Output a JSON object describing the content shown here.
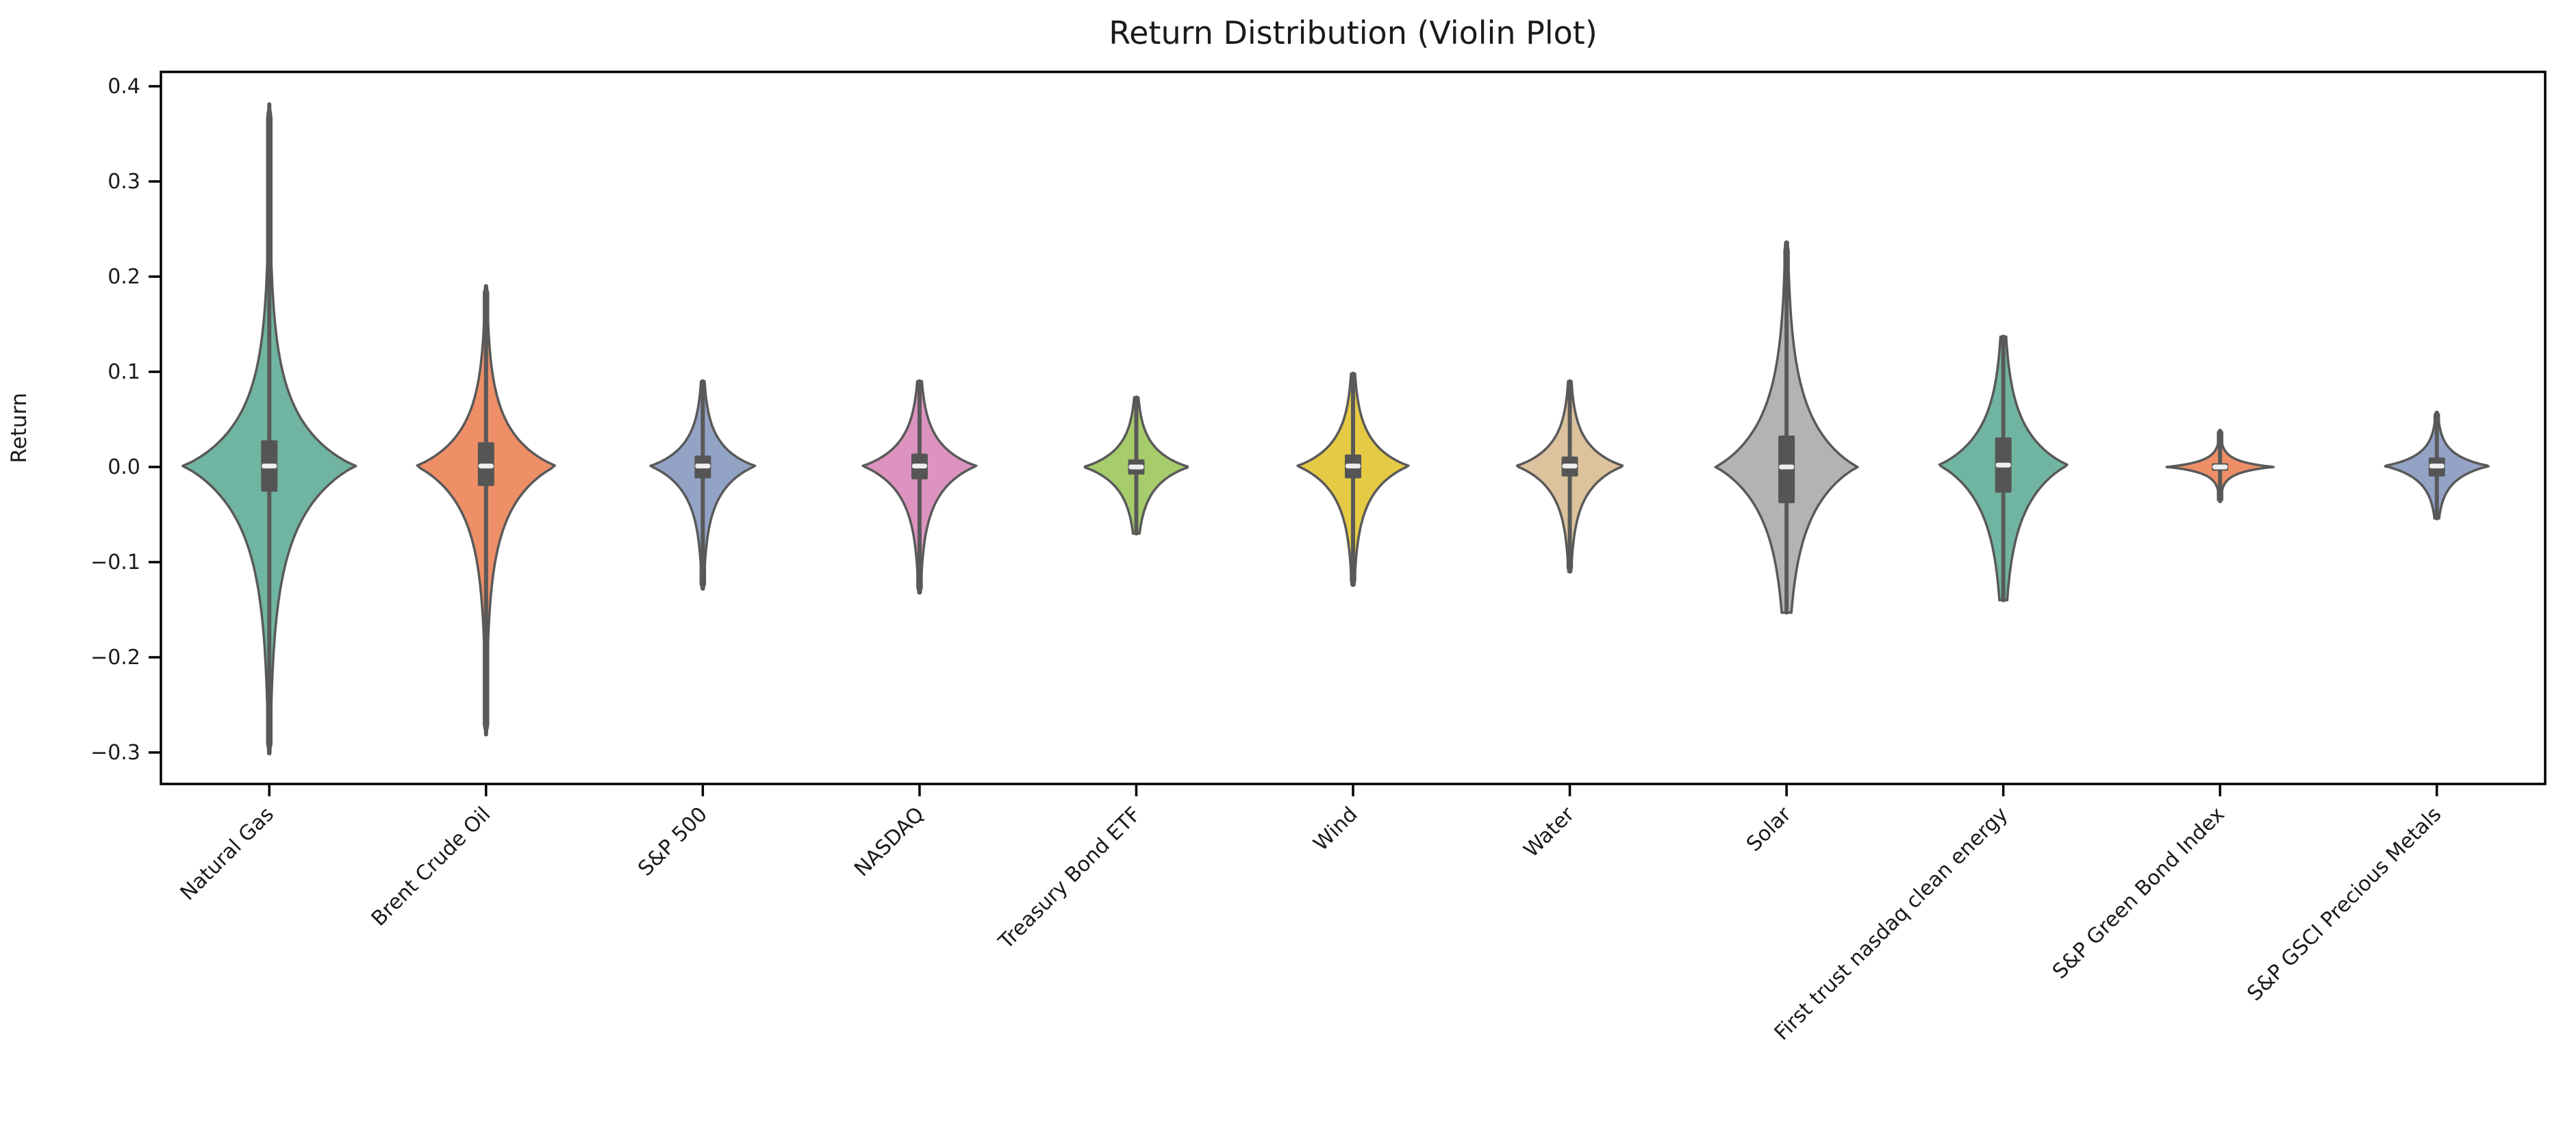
{
  "figure": {
    "background": "#ffffff",
    "spine_color": "#000000",
    "text_color": "#1a1a1a",
    "violin_edge_color": "#595959",
    "whisker_color": "#595959",
    "inner_box_color": "#555555",
    "median_dash_color": "#eeeeee"
  },
  "chart_data": {
    "type": "violin",
    "title": "Return Distribution (Violin Plot)",
    "xlabel": "",
    "ylabel": "Return",
    "ylim": [
      -0.333,
      0.415
    ],
    "grid": false,
    "legend": "none",
    "x_tick_rotation": 45,
    "yticks": [
      {
        "value": 0.4,
        "label": "0.4"
      },
      {
        "value": 0.3,
        "label": "0.3"
      },
      {
        "value": 0.2,
        "label": "0.2"
      },
      {
        "value": 0.1,
        "label": "0.1"
      },
      {
        "value": 0.0,
        "label": "0.0"
      },
      {
        "value": -0.1,
        "label": "−0.1"
      },
      {
        "value": -0.2,
        "label": "−0.2"
      },
      {
        "value": -0.3,
        "label": "−0.3"
      }
    ],
    "categories": [
      "Natural Gas",
      "Brent Crude Oil",
      "S&P 500",
      "NASDAQ",
      "Treasury Bond ETF",
      "Wind",
      "Water",
      "Solar",
      "First trust nasdaq clean energy",
      "S&P Green Bond Index",
      "S&P GSCI Precious Metals"
    ],
    "series": [
      {
        "label": "Natural Gas",
        "color": "#70b5a1",
        "whisker_max": 0.381,
        "whisker_min": -0.301,
        "q3": 0.028,
        "q1": -0.026,
        "median": 0.001,
        "body_top": 0.1,
        "body_bottom": -0.115,
        "half_width": 0.4
      },
      {
        "label": "Brent Crude Oil",
        "color": "#ee8f68",
        "whisker_max": 0.19,
        "whisker_min": -0.281,
        "q3": 0.026,
        "q1": -0.02,
        "median": 0.001,
        "body_top": 0.075,
        "body_bottom": -0.09,
        "half_width": 0.325
      },
      {
        "label": "S&P 500",
        "color": "#93a3c6",
        "whisker_max": 0.09,
        "whisker_min": -0.128,
        "q3": 0.012,
        "q1": -0.012,
        "median": 0.001,
        "body_top": 0.047,
        "body_bottom": -0.055,
        "half_width": 0.245
      },
      {
        "label": "NASDAQ",
        "color": "#dc93c0",
        "whisker_max": 0.09,
        "whisker_min": -0.132,
        "q3": 0.014,
        "q1": -0.013,
        "median": 0.001,
        "body_top": 0.05,
        "body_bottom": -0.058,
        "half_width": 0.265
      },
      {
        "label": "Treasury Bond ETF",
        "color": "#a7cc6b",
        "whisker_max": 0.073,
        "whisker_min": -0.07,
        "q3": 0.008,
        "q1": -0.008,
        "median": 0.0,
        "body_top": 0.04,
        "body_bottom": -0.045,
        "half_width": 0.245
      },
      {
        "label": "Wind",
        "color": "#e5ca45",
        "whisker_max": 0.098,
        "whisker_min": -0.124,
        "q3": 0.013,
        "q1": -0.012,
        "median": 0.001,
        "body_top": 0.052,
        "body_bottom": -0.058,
        "half_width": 0.26
      },
      {
        "label": "Water",
        "color": "#dcc39d",
        "whisker_max": 0.09,
        "whisker_min": -0.11,
        "q3": 0.011,
        "q1": -0.01,
        "median": 0.001,
        "body_top": 0.046,
        "body_bottom": -0.052,
        "half_width": 0.25
      },
      {
        "label": "Solar",
        "color": "#b3b3b3",
        "whisker_max": 0.236,
        "whisker_min": -0.153,
        "q3": 0.033,
        "q1": -0.038,
        "median": 0.0,
        "body_top": 0.102,
        "body_bottom": -0.102,
        "half_width": 0.33
      },
      {
        "label": "First trust nasdaq clean energy",
        "color": "#70b5a1",
        "whisker_max": 0.137,
        "whisker_min": -0.14,
        "q3": 0.031,
        "q1": -0.027,
        "median": 0.002,
        "body_top": 0.078,
        "body_bottom": -0.088,
        "half_width": 0.3
      },
      {
        "label": "S&P Green Bond Index",
        "color": "#ee8f68",
        "whisker_max": 0.038,
        "whisker_min": -0.036,
        "q3": 0.004,
        "q1": -0.004,
        "median": 0.0,
        "body_top": 0.013,
        "body_bottom": -0.013,
        "half_width": 0.25
      },
      {
        "label": "S&P GSCI Precious Metals",
        "color": "#93a3c6",
        "whisker_max": 0.057,
        "whisker_min": -0.054,
        "q3": 0.01,
        "q1": -0.01,
        "median": 0.001,
        "body_top": 0.026,
        "body_bottom": -0.03,
        "half_width": 0.245
      }
    ]
  }
}
